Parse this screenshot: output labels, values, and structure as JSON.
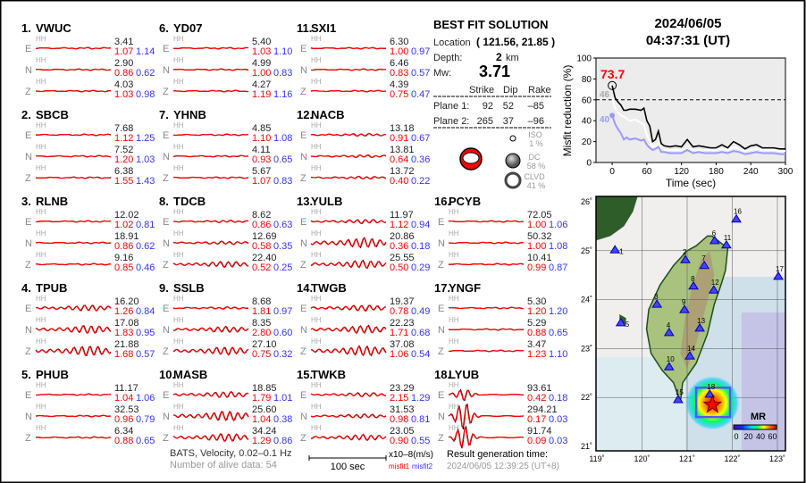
{
  "stations": [
    {
      "num": "1.",
      "name": "VWUC",
      "comps": [
        {
          "c": "E",
          "hh": "HH",
          "max": "3.41",
          "m1": "1.07",
          "m2": "1.14"
        },
        {
          "c": "N",
          "hh": "HH",
          "max": "2.90",
          "m1": "0.86",
          "m2": "0.62"
        },
        {
          "c": "Z",
          "hh": "HH",
          "max": "4.03",
          "m1": "1.03",
          "m2": "0.98"
        }
      ]
    },
    {
      "num": "2.",
      "name": "SBCB",
      "comps": [
        {
          "c": "E",
          "hh": "HH",
          "max": "7.68",
          "m1": "1.12",
          "m2": "1.25"
        },
        {
          "c": "N",
          "hh": "HH",
          "max": "7.52",
          "m1": "1.20",
          "m2": "1.03"
        },
        {
          "c": "Z",
          "hh": "HH",
          "max": "6.38",
          "m1": "1.55",
          "m2": "1.43"
        }
      ]
    },
    {
      "num": "3.",
      "name": "RLNB",
      "comps": [
        {
          "c": "E",
          "hh": "HH",
          "max": "12.02",
          "m1": "1.02",
          "m2": "0.81"
        },
        {
          "c": "N",
          "hh": "HH",
          "max": "18.91",
          "m1": "0.86",
          "m2": "0.62"
        },
        {
          "c": "Z",
          "hh": "HH",
          "max": "9.16",
          "m1": "0.85",
          "m2": "0.46"
        }
      ]
    },
    {
      "num": "4.",
      "name": "TPUB",
      "comps": [
        {
          "c": "E",
          "hh": "HH",
          "max": "16.20",
          "m1": "1.26",
          "m2": "0.84"
        },
        {
          "c": "N",
          "hh": "HH",
          "max": "17.08",
          "m1": "1.83",
          "m2": "0.95"
        },
        {
          "c": "Z",
          "hh": "HH",
          "max": "21.88",
          "m1": "1.68",
          "m2": "0.57"
        }
      ]
    },
    {
      "num": "5.",
      "name": "PHUB",
      "comps": [
        {
          "c": "E",
          "hh": "HH",
          "max": "11.17",
          "m1": "1.04",
          "m2": "1.06"
        },
        {
          "c": "N",
          "hh": "HH",
          "max": "32.53",
          "m1": "0.96",
          "m2": "0.79"
        },
        {
          "c": "Z",
          "hh": "HH",
          "max": "6.34",
          "m1": "0.88",
          "m2": "0.65"
        }
      ]
    },
    {
      "num": "6.",
      "name": "YD07",
      "comps": [
        {
          "c": "E",
          "hh": "HH",
          "max": "5.40",
          "m1": "1.03",
          "m2": "1.10"
        },
        {
          "c": "N",
          "hh": "HH",
          "max": "4.99",
          "m1": "1.00",
          "m2": "0.83"
        },
        {
          "c": "Z",
          "hh": "HH",
          "max": "4.27",
          "m1": "1.19",
          "m2": "1.16"
        }
      ]
    },
    {
      "num": "7.",
      "name": "YHNB",
      "comps": [
        {
          "c": "E",
          "hh": "HH",
          "max": "4.85",
          "m1": "1.10",
          "m2": "1.08"
        },
        {
          "c": "N",
          "hh": "HH",
          "max": "4.11",
          "m1": "0.93",
          "m2": "0.65"
        },
        {
          "c": "Z",
          "hh": "HH",
          "max": "5.67",
          "m1": "1.07",
          "m2": "0.83"
        }
      ]
    },
    {
      "num": "8.",
      "name": "TDCB",
      "comps": [
        {
          "c": "E",
          "hh": "HH",
          "max": "8.62",
          "m1": "0.86",
          "m2": "0.63"
        },
        {
          "c": "N",
          "hh": "HH",
          "max": "12.69",
          "m1": "0.58",
          "m2": "0.35"
        },
        {
          "c": "Z",
          "hh": "HH",
          "max": "22.40",
          "m1": "0.52",
          "m2": "0.25"
        }
      ]
    },
    {
      "num": "9.",
      "name": "SSLB",
      "comps": [
        {
          "c": "E",
          "hh": "HH",
          "max": "8.68",
          "m1": "1.81",
          "m2": "0.97"
        },
        {
          "c": "N",
          "hh": "HH",
          "max": "8.35",
          "m1": "2.80",
          "m2": "0.60"
        },
        {
          "c": "Z",
          "hh": "HH",
          "max": "27.10",
          "m1": "0.75",
          "m2": "0.32"
        }
      ]
    },
    {
      "num": "10.",
      "name": "MASB",
      "comps": [
        {
          "c": "E",
          "hh": "HH",
          "max": "18.85",
          "m1": "1.79",
          "m2": "1.01"
        },
        {
          "c": "N",
          "hh": "HH",
          "max": "25.60",
          "m1": "1.04",
          "m2": "0.38"
        },
        {
          "c": "Z",
          "hh": "HH",
          "max": "34.24",
          "m1": "1.29",
          "m2": "0.86"
        }
      ]
    },
    {
      "num": "11.",
      "name": "SXI1",
      "comps": [
        {
          "c": "E",
          "hh": "HH",
          "max": "6.30",
          "m1": "1.00",
          "m2": "0.97"
        },
        {
          "c": "N",
          "hh": "HH",
          "max": "6.46",
          "m1": "0.83",
          "m2": "0.57"
        },
        {
          "c": "Z",
          "hh": "HH",
          "max": "4.39",
          "m1": "0.75",
          "m2": "0.47"
        }
      ]
    },
    {
      "num": "12.",
      "name": "NACB",
      "comps": [
        {
          "c": "E",
          "hh": "HH",
          "max": "13.18",
          "m1": "0.91",
          "m2": "0.67"
        },
        {
          "c": "N",
          "hh": "HH",
          "max": "13.81",
          "m1": "0.64",
          "m2": "0.36"
        },
        {
          "c": "Z",
          "hh": "HH",
          "max": "13.72",
          "m1": "0.40",
          "m2": "0.22"
        }
      ]
    },
    {
      "num": "13.",
      "name": "YULB",
      "comps": [
        {
          "c": "E",
          "hh": "HH",
          "max": "11.97",
          "m1": "1.12",
          "m2": "0.94"
        },
        {
          "c": "N",
          "hh": "HH",
          "max": "20.86",
          "m1": "0.36",
          "m2": "0.18"
        },
        {
          "c": "Z",
          "hh": "HH",
          "max": "25.55",
          "m1": "0.50",
          "m2": "0.29"
        }
      ]
    },
    {
      "num": "14.",
      "name": "TWGB",
      "comps": [
        {
          "c": "E",
          "hh": "HH",
          "max": "19.37",
          "m1": "0.78",
          "m2": "0.49"
        },
        {
          "c": "N",
          "hh": "HH",
          "max": "22.23",
          "m1": "1.71",
          "m2": "0.68"
        },
        {
          "c": "Z",
          "hh": "HH",
          "max": "37.08",
          "m1": "1.06",
          "m2": "0.54"
        }
      ]
    },
    {
      "num": "15.",
      "name": "TWKB",
      "comps": [
        {
          "c": "E",
          "hh": "HH",
          "max": "23.29",
          "m1": "2.15",
          "m2": "1.29"
        },
        {
          "c": "N",
          "hh": "HH",
          "max": "31.53",
          "m1": "0.98",
          "m2": "0.81"
        },
        {
          "c": "Z",
          "hh": "HH",
          "max": "23.05",
          "m1": "0.90",
          "m2": "0.55"
        }
      ]
    },
    {
      "num": "16.",
      "name": "PCYB",
      "comps": [
        {
          "c": "E",
          "hh": "HH",
          "max": "72.05",
          "m1": "1.00",
          "m2": "1.06"
        },
        {
          "c": "N",
          "hh": "HH",
          "max": "50.32",
          "m1": "1.00",
          "m2": "1.08"
        },
        {
          "c": "Z",
          "hh": "HH",
          "max": "10.41",
          "m1": "0.99",
          "m2": "0.87"
        }
      ]
    },
    {
      "num": "17.",
      "name": "YNGF",
      "comps": [
        {
          "c": "E",
          "hh": "HH",
          "max": "5.30",
          "m1": "1.20",
          "m2": "1.20"
        },
        {
          "c": "N",
          "hh": "HH",
          "max": "5.29",
          "m1": "0.88",
          "m2": "0.65"
        },
        {
          "c": "Z",
          "hh": "HH",
          "max": "3.47",
          "m1": "1.23",
          "m2": "1.10"
        }
      ]
    },
    {
      "num": "18.",
      "name": "LYUB",
      "comps": [
        {
          "c": "E",
          "hh": "HH",
          "max": "93.61",
          "m1": "0.42",
          "m2": "0.18"
        },
        {
          "c": "N",
          "hh": "HH",
          "max": "294.21",
          "m1": "0.17",
          "m2": "0.03"
        },
        {
          "c": "Z",
          "hh": "HH",
          "max": "91.74",
          "m1": "0.09",
          "m2": "0.03"
        }
      ]
    }
  ],
  "solution": {
    "title": "BEST FIT SOLUTION",
    "location_label": "Location",
    "location_value": "( 121.56,  21.85 )",
    "depth_label": "Depth:",
    "depth_value": "2",
    "depth_unit": "km",
    "mw_label": "Mw:",
    "mw_value": "3.71",
    "headers": [
      "Strike",
      "Dip",
      "Rake"
    ],
    "planes": [
      {
        "label": "Plane 1:",
        "strike": "92",
        "dip": "52",
        "rake": "–85"
      },
      {
        "label": "Plane 2:",
        "strike": "265",
        "dip": "37",
        "rake": "–96"
      }
    ],
    "components": [
      {
        "name": "ISO",
        "pct": "1  %"
      },
      {
        "name": "DC",
        "pct": "58 %"
      },
      {
        "name": "CLVD",
        "pct": "41 %"
      }
    ],
    "beachball_color": "#ff0000"
  },
  "event": {
    "date": "2024/06/05",
    "time": "04:37:31  (UT)"
  },
  "chart_data": {
    "type": "line",
    "xlabel": "Time (sec)",
    "ylabel": "Misfit reduction (%)",
    "xlim": [
      -28,
      300
    ],
    "ylim": [
      0,
      100
    ],
    "xticks": [
      "0",
      "60",
      "120",
      "180",
      "240",
      "300"
    ],
    "yticks": [
      "0",
      "20",
      "40",
      "60",
      "80",
      "100"
    ],
    "threshold": 60,
    "peak_label": "73.7",
    "white_label": "46",
    "blue_label": "40",
    "x": [
      0,
      5,
      10,
      15,
      20,
      25,
      30,
      40,
      50,
      55,
      60,
      65,
      70,
      75,
      80,
      85,
      90,
      100,
      110,
      120,
      130,
      140,
      150,
      160,
      170,
      180,
      190,
      200,
      210,
      220,
      230,
      240,
      250,
      260,
      270,
      280,
      290,
      300
    ],
    "series": [
      {
        "color": "#000000",
        "values": [
          73.7,
          62,
          58,
          55,
          50,
          50,
          51,
          51,
          50,
          52,
          40,
          35,
          20,
          22,
          30,
          18,
          16,
          15,
          16,
          15,
          22,
          15,
          16,
          15,
          14,
          14,
          17,
          14,
          20,
          17,
          13,
          16,
          17,
          14,
          14,
          14,
          13,
          13
        ]
      },
      {
        "color": "#ffffff",
        "values": [
          62,
          52,
          48,
          45,
          44,
          42,
          40,
          41,
          38,
          36,
          26,
          20,
          15,
          16,
          18,
          14,
          12,
          12,
          12,
          12,
          14,
          12,
          12,
          12,
          12,
          12,
          13,
          12,
          15,
          13,
          11,
          12,
          13,
          12,
          12,
          12,
          11,
          11
        ]
      },
      {
        "color": "#9999ff",
        "values": [
          45,
          37,
          32,
          28,
          22,
          24,
          22,
          23,
          21,
          22,
          17,
          14,
          12,
          13,
          15,
          10,
          10,
          9,
          9,
          9,
          12,
          9,
          10,
          9,
          9,
          9,
          10,
          9,
          11,
          10,
          8,
          9,
          10,
          9,
          9,
          9,
          8,
          8
        ]
      }
    ],
    "background": "#ececec"
  },
  "map": {
    "lon_ticks": [
      "119˚",
      "120˚",
      "121˚",
      "122˚",
      "123˚"
    ],
    "lat_ticks": [
      "26˚",
      "25˚",
      "24˚",
      "23˚",
      "22˚",
      "21˚"
    ],
    "colorbar_label": "MR",
    "colorbar_ticks": [
      "0",
      "20",
      "40",
      "60"
    ],
    "epicenter": {
      "lon": 121.56,
      "lat": 21.85
    },
    "station_color": "#4444ff",
    "station_markers": [
      {
        "id": "1",
        "lon": 119.4,
        "lat": 25.01
      },
      {
        "id": "2",
        "lon": 120.96,
        "lat": 24.81
      },
      {
        "id": "3",
        "lon": 120.33,
        "lat": 23.9
      },
      {
        "id": "4",
        "lon": 120.6,
        "lat": 23.32
      },
      {
        "id": "5",
        "lon": 119.53,
        "lat": 23.52
      },
      {
        "id": "6",
        "lon": 121.61,
        "lat": 25.2
      },
      {
        "id": "7",
        "lon": 121.38,
        "lat": 24.69
      },
      {
        "id": "8",
        "lon": 121.14,
        "lat": 24.27
      },
      {
        "id": "9",
        "lon": 120.94,
        "lat": 23.79
      },
      {
        "id": "10",
        "lon": 120.6,
        "lat": 22.62
      },
      {
        "id": "11",
        "lon": 121.87,
        "lat": 25.11
      },
      {
        "id": "12",
        "lon": 121.59,
        "lat": 24.19
      },
      {
        "id": "13",
        "lon": 121.28,
        "lat": 23.41
      },
      {
        "id": "14",
        "lon": 121.06,
        "lat": 22.84
      },
      {
        "id": "15",
        "lon": 120.8,
        "lat": 21.95
      },
      {
        "id": "16",
        "lon": 122.09,
        "lat": 25.64
      },
      {
        "id": "17",
        "lon": 123.02,
        "lat": 24.47
      },
      {
        "id": "18",
        "lon": 121.5,
        "lat": 22.06
      }
    ]
  },
  "footer": {
    "network": "BATS, Velocity, 0.02–0.1 Hz",
    "alive": "Number of alive data: 54",
    "scale": "100 sec",
    "units": "x10–8(m/s)",
    "misfit1": "misfit1",
    "misfit2": "misfit2",
    "gen_label": "Result generation time:",
    "gen_time": "2024/06/05 12:39:25 (UT+8)"
  }
}
